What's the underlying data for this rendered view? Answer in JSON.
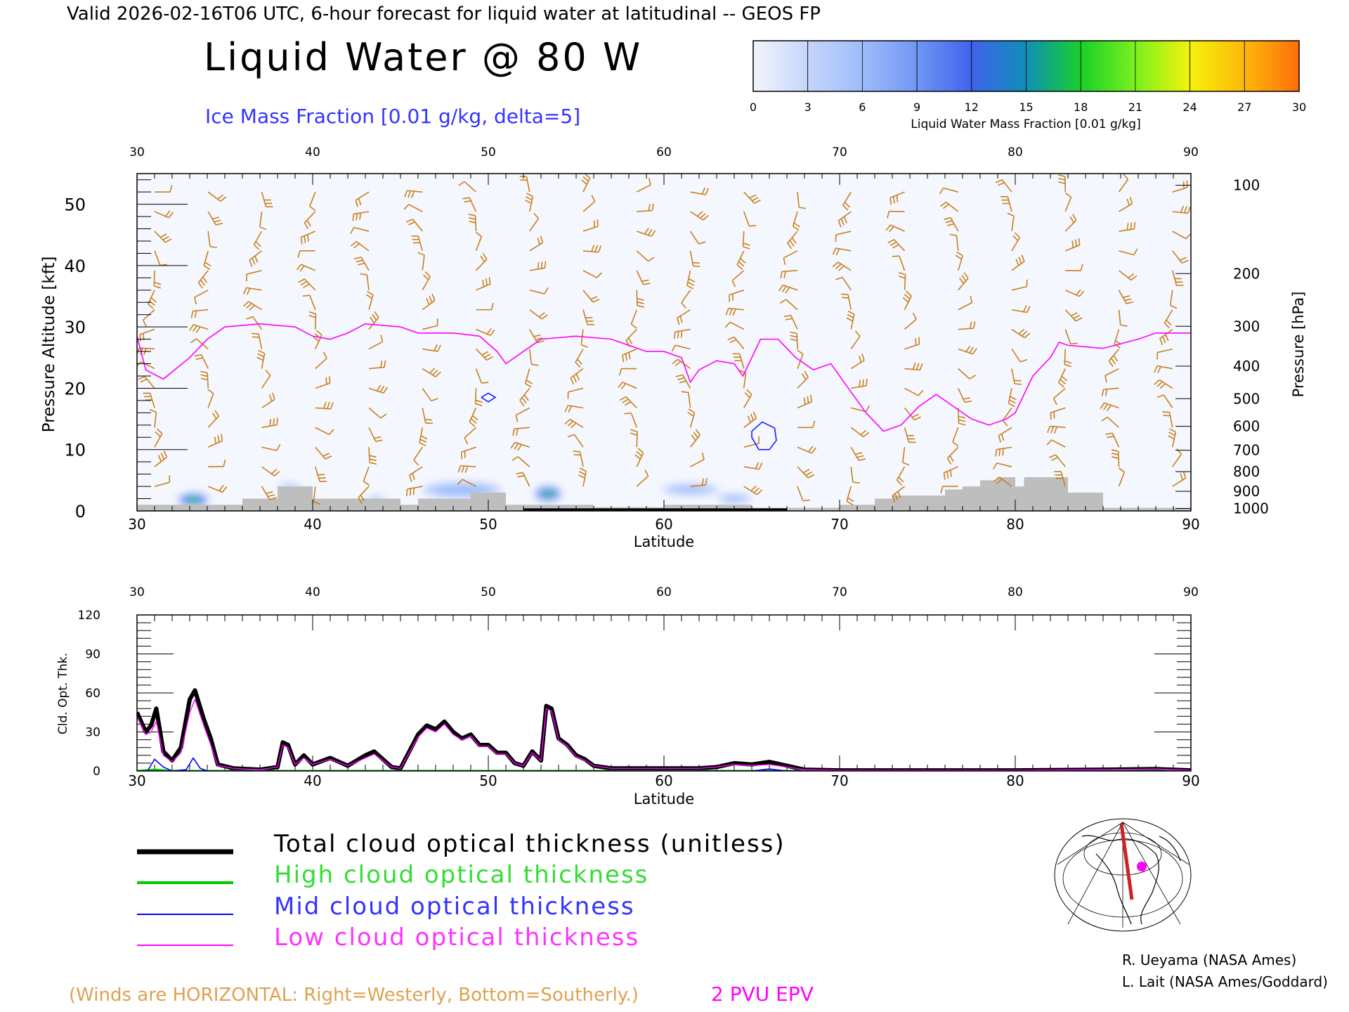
{
  "header": {
    "valid_line": "Valid 2026-02-16T06 UTC, 6-hour forecast for liquid water at latitudinal -- GEOS FP",
    "main_title": "Liquid Water @ 80 W",
    "ice_label": "Ice Mass Fraction [0.01 g/kg, delta=5]"
  },
  "colorbar": {
    "title": "Liquid Water Mass Fraction [0.01 g/kg]",
    "ticks": [
      "0",
      "3",
      "6",
      "9",
      "12",
      "15",
      "18",
      "21",
      "24",
      "27",
      "30"
    ],
    "colors": [
      "#f2f4fd",
      "#c5d6fb",
      "#9fbcfa",
      "#7096f4",
      "#3f63ec",
      "#0f8fb7",
      "#19d02a",
      "#7af01f",
      "#f4f20c",
      "#fdb70a",
      "#fd6e0a"
    ]
  },
  "colors": {
    "tropopause": "#ff00ff",
    "ice_contour": "#1a1aff",
    "wind_barbs": "#c8801e",
    "terrain": "#bebebe",
    "total": "#000000",
    "high": "#00cc00",
    "mid": "#0000ff",
    "low": "#ff00ff",
    "wind_note": "#e0a050"
  },
  "chart_data": [
    {
      "type": "heatmap",
      "name": "liquid-water-cross-section",
      "xlabel": "Latitude",
      "ylabel": "Pressure Altitude [kft]",
      "y2label": "Pressure [hPa]",
      "xlim": [
        30,
        90
      ],
      "ylim": [
        0,
        55
      ],
      "x_ticks": [
        "30",
        "40",
        "50",
        "60",
        "70",
        "80",
        "90"
      ],
      "y_ticks": [
        "0",
        "10",
        "20",
        "30",
        "40",
        "50"
      ],
      "y2_ticks": [
        "100",
        "200",
        "300",
        "400",
        "500",
        "600",
        "700",
        "800",
        "900",
        "1000"
      ],
      "y2_tick_kft": [
        53.1,
        38.7,
        30.1,
        23.6,
        18.3,
        13.8,
        9.9,
        6.4,
        3.2,
        0.4
      ],
      "epv_2pvu_kft": [
        [
          30,
          28.5
        ],
        [
          30.5,
          23
        ],
        [
          31.5,
          21.5
        ],
        [
          33,
          25
        ],
        [
          34,
          28
        ],
        [
          35,
          30
        ],
        [
          37,
          30.5
        ],
        [
          39,
          30
        ],
        [
          40,
          28.5
        ],
        [
          41,
          28
        ],
        [
          42,
          29
        ],
        [
          43,
          30.5
        ],
        [
          45,
          30
        ],
        [
          46,
          29
        ],
        [
          48,
          29
        ],
        [
          49.5,
          28.5
        ],
        [
          50.5,
          26
        ],
        [
          51,
          24
        ],
        [
          52,
          26
        ],
        [
          53,
          28
        ],
        [
          55,
          28.5
        ],
        [
          57,
          28
        ],
        [
          59,
          26
        ],
        [
          60,
          26
        ],
        [
          61,
          25
        ],
        [
          61.5,
          21
        ],
        [
          62,
          23
        ],
        [
          63,
          24.5
        ],
        [
          64,
          24
        ],
        [
          64.5,
          22
        ],
        [
          65.5,
          28
        ],
        [
          66.5,
          28
        ],
        [
          67.5,
          25
        ],
        [
          68.5,
          23
        ],
        [
          69.5,
          24
        ],
        [
          70.5,
          20
        ],
        [
          71.5,
          16
        ],
        [
          72.5,
          13
        ],
        [
          73.5,
          14
        ],
        [
          74.5,
          17
        ],
        [
          75.5,
          19
        ],
        [
          76.5,
          17
        ],
        [
          77.5,
          15
        ],
        [
          78.5,
          14
        ],
        [
          79.5,
          15
        ],
        [
          80,
          16
        ],
        [
          81,
          22
        ],
        [
          82,
          25
        ],
        [
          82.5,
          27.5
        ],
        [
          83,
          27
        ],
        [
          85,
          26.5
        ],
        [
          87,
          28
        ],
        [
          88,
          29
        ],
        [
          90,
          29
        ]
      ],
      "ice_contours_kft": [
        [
          [
            49.6,
            18.5
          ],
          [
            50,
            19.2
          ],
          [
            50.4,
            18.5
          ],
          [
            50,
            17.8
          ],
          [
            49.6,
            18.5
          ]
        ],
        [
          [
            65,
            13
          ],
          [
            65.6,
            14.5
          ],
          [
            66.3,
            13.5
          ],
          [
            66.4,
            11.5
          ],
          [
            66,
            10
          ],
          [
            65.4,
            10
          ],
          [
            65,
            12
          ],
          [
            65,
            13
          ]
        ]
      ],
      "liquid_blobs": [
        {
          "lat": 33.2,
          "kft": 1.8,
          "value": 18,
          "w": 1.4,
          "h": 1.6
        },
        {
          "lat": 38.7,
          "kft": 3.8,
          "value": 8,
          "w": 1.0,
          "h": 0.8
        },
        {
          "lat": 43.6,
          "kft": 1.8,
          "value": 9,
          "w": 0.8,
          "h": 0.7
        },
        {
          "lat": 48.5,
          "kft": 3.4,
          "value": 9,
          "w": 3.5,
          "h": 1.8
        },
        {
          "lat": 53.4,
          "kft": 2.8,
          "value": 19,
          "w": 1.2,
          "h": 1.8
        },
        {
          "lat": 61.5,
          "kft": 3.5,
          "value": 3,
          "w": 2.5,
          "h": 1.2
        },
        {
          "lat": 64.0,
          "kft": 2.0,
          "value": 3,
          "w": 1.5,
          "h": 1.0
        }
      ],
      "terrain_kft": [
        [
          30,
          1
        ],
        [
          35,
          1
        ],
        [
          36,
          2
        ],
        [
          37,
          2
        ],
        [
          38,
          4
        ],
        [
          39.5,
          4
        ],
        [
          40,
          2
        ],
        [
          44,
          2
        ],
        [
          45,
          1
        ],
        [
          46,
          2
        ],
        [
          48,
          2
        ],
        [
          49,
          3
        ],
        [
          51,
          1
        ],
        [
          56,
          0.6
        ],
        [
          60,
          1
        ],
        [
          64,
          1
        ],
        [
          65,
          0.5
        ],
        [
          70,
          1
        ],
        [
          72,
          2
        ],
        [
          73,
          2.5
        ],
        [
          75,
          2.5
        ],
        [
          76,
          3.5
        ],
        [
          77,
          4
        ],
        [
          78,
          5
        ],
        [
          79,
          5.5
        ],
        [
          80,
          4
        ],
        [
          80.5,
          5.5
        ],
        [
          82,
          5.5
        ],
        [
          83,
          3
        ],
        [
          85,
          0.5
        ],
        [
          90,
          0.5
        ]
      ]
    },
    {
      "type": "line",
      "name": "cloud-optical-thickness",
      "xlabel": "Latitude",
      "ylabel": "Cld. Opt. Thk.",
      "xlim": [
        30,
        90
      ],
      "ylim": [
        0,
        120
      ],
      "x_ticks": [
        "30",
        "40",
        "50",
        "60",
        "70",
        "80",
        "90"
      ],
      "y_ticks": [
        "0",
        "30",
        "60",
        "90",
        "120"
      ],
      "series": [
        {
          "name": "Total cloud optical thickness (unitless)",
          "style": "total",
          "x": [
            30,
            30.5,
            30.8,
            31.1,
            31.5,
            32,
            32.5,
            33,
            33.3,
            33.8,
            34.2,
            34.6,
            35.5,
            37,
            38,
            38.3,
            38.6,
            39,
            39.5,
            40,
            41,
            42,
            43,
            43.5,
            44,
            44.5,
            45,
            45.5,
            46,
            46.5,
            47,
            47.5,
            48,
            48.5,
            49,
            49.5,
            50,
            50.5,
            51,
            51.5,
            52,
            52.5,
            53,
            53.3,
            53.6,
            54,
            54.5,
            55,
            55.5,
            56,
            57,
            58,
            60,
            62,
            63,
            64,
            65,
            66,
            67,
            68,
            70,
            72,
            75,
            80,
            85,
            88,
            90
          ],
          "y": [
            45,
            30,
            35,
            48,
            15,
            8,
            18,
            55,
            62,
            40,
            25,
            5,
            2,
            1,
            3,
            22,
            20,
            5,
            12,
            5,
            10,
            4,
            12,
            15,
            9,
            3,
            2,
            15,
            28,
            35,
            32,
            38,
            30,
            25,
            28,
            20,
            20,
            14,
            14,
            6,
            4,
            15,
            8,
            50,
            48,
            25,
            20,
            12,
            9,
            4,
            2,
            2,
            2,
            2,
            3,
            6,
            5,
            7,
            4,
            1,
            0.5,
            0.5,
            0.5,
            0.5,
            1,
            1.5,
            0.5
          ]
        },
        {
          "name": "High cloud optical thickness",
          "style": "high",
          "x": [
            30,
            31,
            32,
            35,
            40,
            60,
            90
          ],
          "y": [
            0,
            1,
            0,
            0,
            0,
            0,
            0
          ]
        },
        {
          "name": "Mid cloud optical thickness",
          "style": "mid",
          "x": [
            30,
            30.6,
            31,
            31.5,
            32,
            32.8,
            33.2,
            33.6,
            34,
            35,
            40,
            60,
            65,
            66,
            67,
            90
          ],
          "y": [
            0,
            0,
            9,
            3,
            0,
            1,
            10,
            2,
            0,
            0,
            0,
            0,
            0,
            1.5,
            0,
            0
          ]
        },
        {
          "name": "Low cloud optical thickness",
          "style": "low",
          "x": [
            30,
            30.5,
            30.8,
            31.1,
            31.5,
            32,
            32.5,
            33,
            33.3,
            33.8,
            34.2,
            34.6,
            35.5,
            37,
            38,
            38.3,
            38.6,
            39,
            39.5,
            40,
            41,
            42,
            43,
            43.5,
            44,
            44.5,
            45,
            45.5,
            46,
            46.5,
            47,
            47.5,
            48,
            48.5,
            49,
            49.5,
            50,
            50.5,
            51,
            51.5,
            52,
            52.5,
            53,
            53.3,
            53.6,
            54,
            54.5,
            55,
            55.5,
            56,
            57,
            58,
            60,
            62,
            63,
            64,
            65,
            66,
            67,
            68,
            70,
            72,
            75,
            80,
            85,
            88,
            90
          ],
          "y": [
            42,
            28,
            30,
            38,
            12,
            7,
            14,
            45,
            55,
            35,
            20,
            4,
            2,
            1,
            3,
            20,
            18,
            5,
            10,
            5,
            9,
            4,
            10,
            13,
            8,
            3,
            2,
            14,
            26,
            33,
            30,
            36,
            28,
            24,
            27,
            19,
            19,
            13,
            13,
            6,
            4,
            14,
            8,
            48,
            46,
            24,
            19,
            11,
            8,
            4,
            2,
            2,
            2,
            2,
            3,
            5,
            4,
            5,
            3,
            1,
            0.5,
            0.5,
            0.5,
            0.5,
            1,
            1.5,
            0.5
          ]
        }
      ]
    }
  ],
  "legend_section": {
    "total_label": "Total cloud optical thickness (unitless)",
    "high_label": "High cloud optical thickness",
    "mid_label": "Mid cloud optical thickness",
    "low_label": "Low cloud optical thickness"
  },
  "footer": {
    "winds_note": "(Winds are HORIZONTAL: Right=Westerly, Bottom=Southerly.)",
    "epv_label": "2 PVU EPV",
    "credit1": "R. Ueyama (NASA Ames)",
    "credit2": "L. Lait (NASA Ames/Goddard)"
  }
}
